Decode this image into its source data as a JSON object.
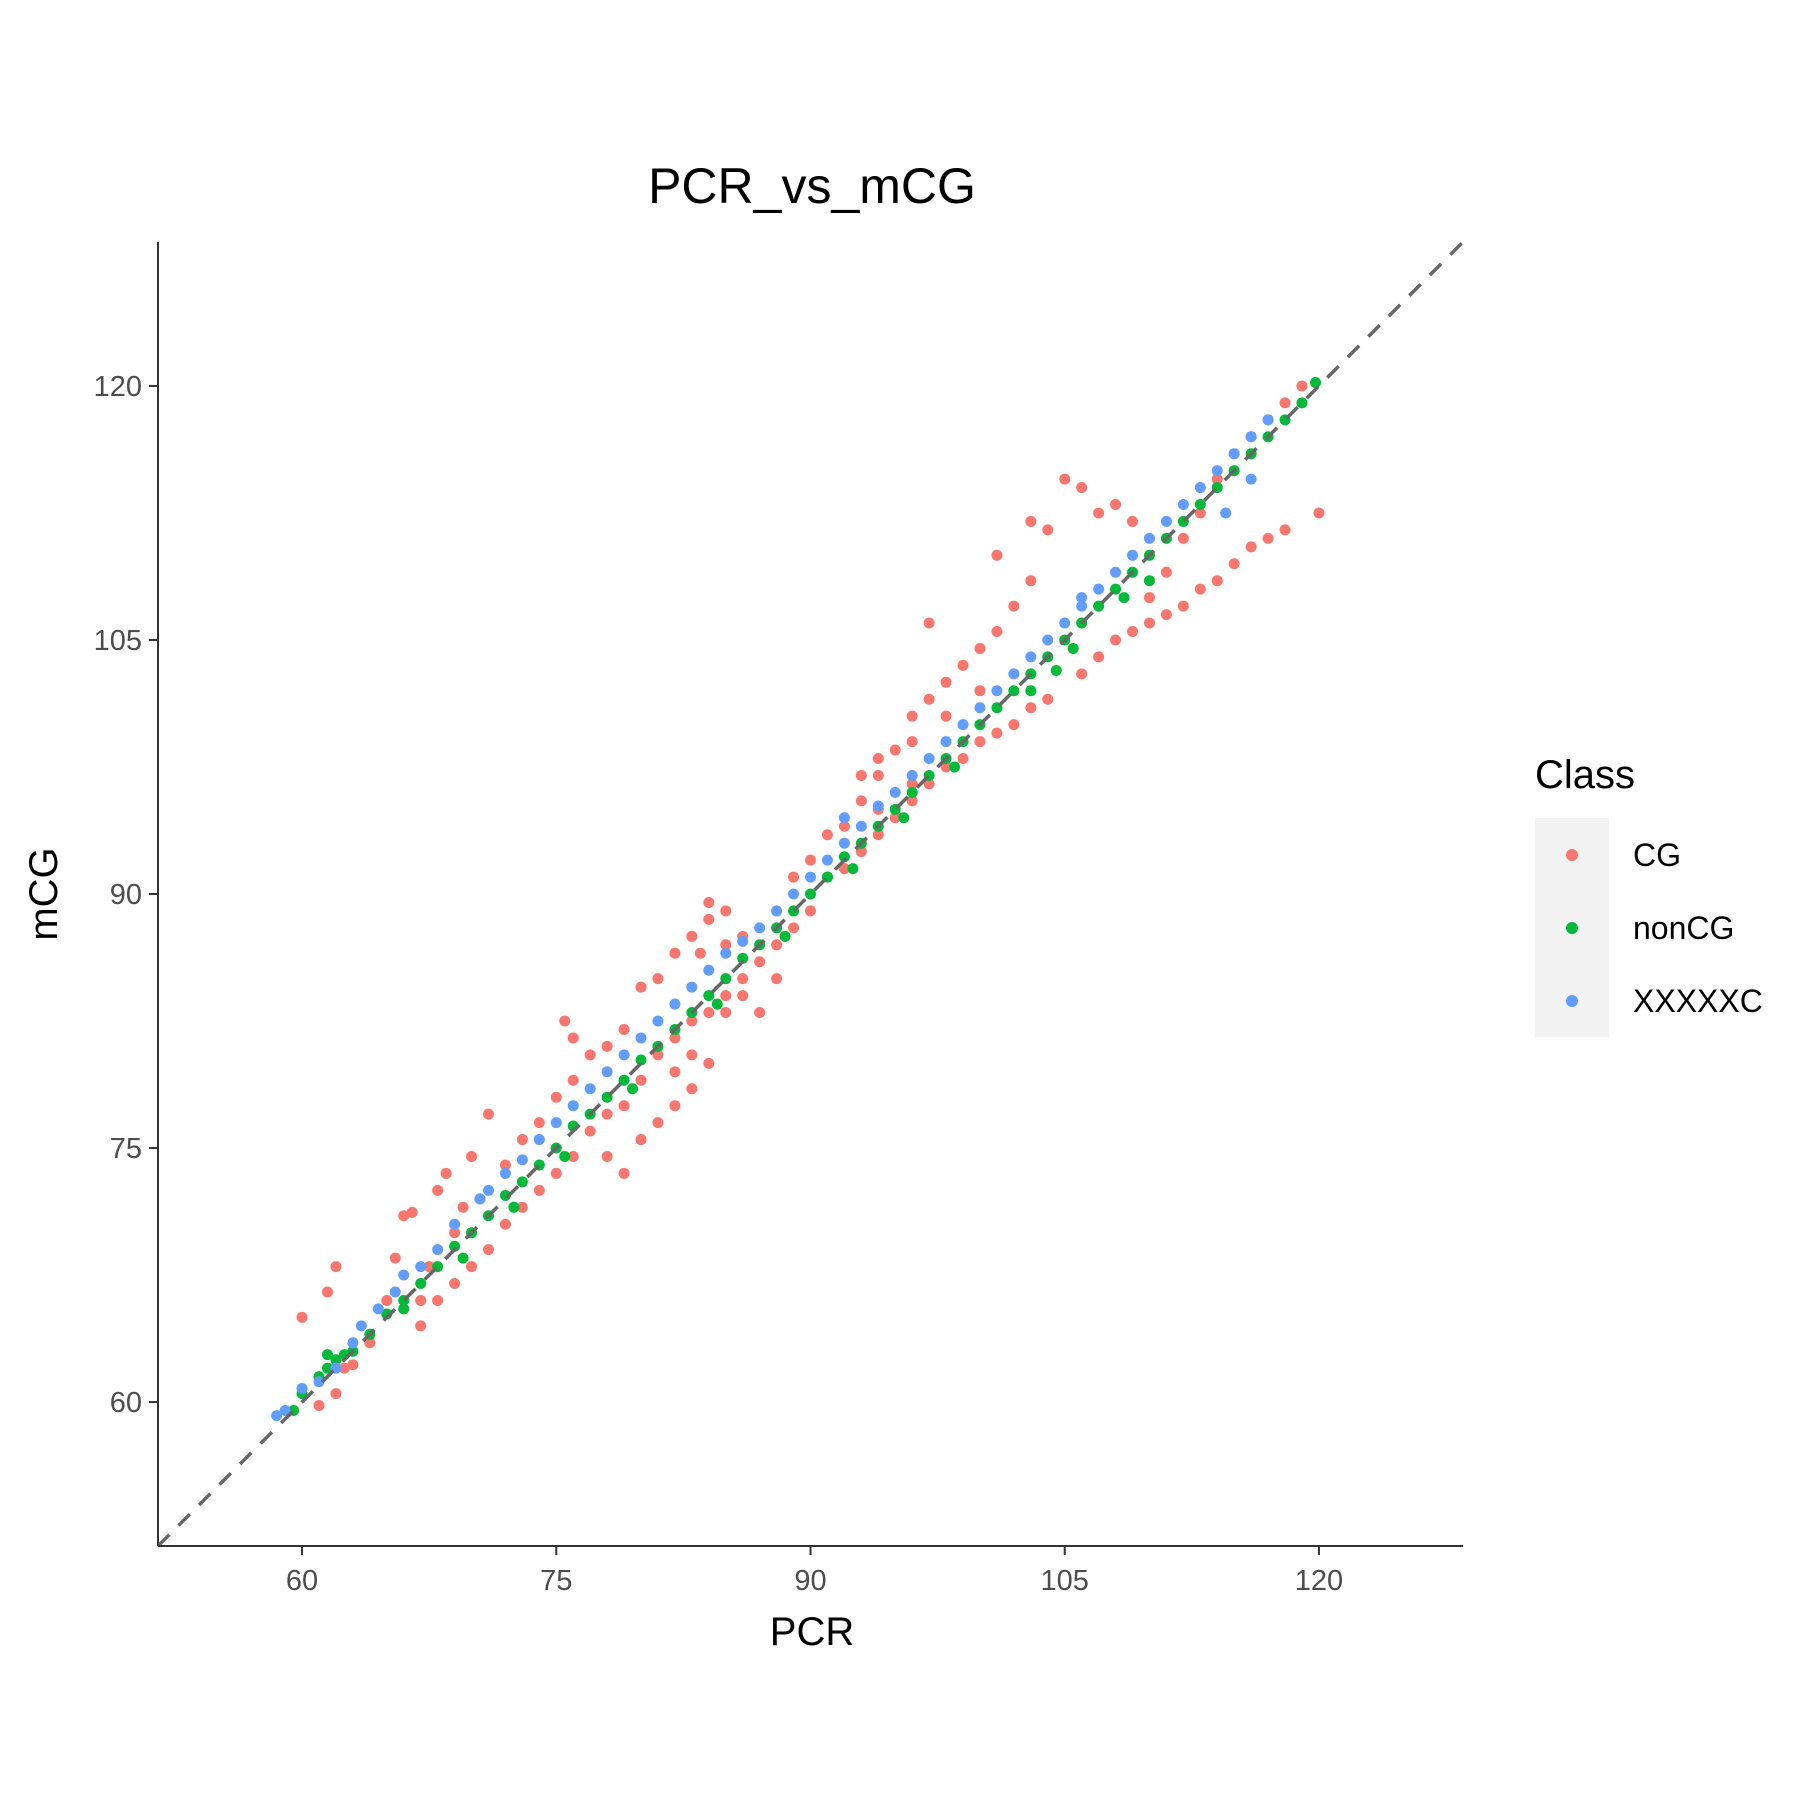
{
  "chart_data": {
    "type": "scatter",
    "title": "PCR_vs_mCG",
    "xlabel": "PCR",
    "ylabel": "mCG",
    "xlim": [
      51.5,
      128.5
    ],
    "ylim": [
      51.5,
      128.5
    ],
    "xticks": [
      60,
      75,
      90,
      105,
      120
    ],
    "yticks": [
      60,
      75,
      90,
      105,
      120
    ],
    "grid": false,
    "reference_line": {
      "type": "identity",
      "style": "dashed",
      "color": "#666666"
    },
    "legend": {
      "title": "Class",
      "position": "right"
    },
    "series": [
      {
        "name": "CG",
        "color": "#F8766D",
        "points": [
          [
            60,
            65
          ],
          [
            61.5,
            66.5
          ],
          [
            62,
            68
          ],
          [
            62.5,
            62
          ],
          [
            61,
            59.8
          ],
          [
            62,
            60.5
          ],
          [
            63,
            62.2
          ],
          [
            64,
            63.5
          ],
          [
            65,
            66
          ],
          [
            65.5,
            68.5
          ],
          [
            66,
            71
          ],
          [
            66.5,
            71.2
          ],
          [
            67,
            66
          ],
          [
            67.5,
            68
          ],
          [
            68,
            72.5
          ],
          [
            68.5,
            73.5
          ],
          [
            69,
            70
          ],
          [
            69.5,
            71.5
          ],
          [
            70,
            74.5
          ],
          [
            70.5,
            72
          ],
          [
            67,
            64.5
          ],
          [
            68,
            66
          ],
          [
            69,
            67
          ],
          [
            70,
            68
          ],
          [
            71,
            69
          ],
          [
            72,
            70.5
          ],
          [
            73,
            71.5
          ],
          [
            74,
            72.5
          ],
          [
            75,
            73.5
          ],
          [
            76,
            74.5
          ],
          [
            77,
            76
          ],
          [
            78,
            77
          ],
          [
            72,
            74
          ],
          [
            73,
            75.5
          ],
          [
            74,
            76.5
          ],
          [
            75,
            78
          ],
          [
            76,
            79
          ],
          [
            77,
            80.5
          ],
          [
            78,
            81
          ],
          [
            79,
            82
          ],
          [
            75.5,
            82.5
          ],
          [
            76,
            81.5
          ],
          [
            71,
            77
          ],
          [
            80,
            75.5
          ],
          [
            81,
            76.5
          ],
          [
            82,
            77.5
          ],
          [
            83,
            78.5
          ],
          [
            84,
            80
          ],
          [
            79,
            77.5
          ],
          [
            80,
            79
          ],
          [
            81,
            80.5
          ],
          [
            82,
            81.5
          ],
          [
            83,
            82.5
          ],
          [
            84,
            83
          ],
          [
            85,
            84
          ],
          [
            86,
            85
          ],
          [
            80,
            84.5
          ],
          [
            81,
            85
          ],
          [
            82,
            86.5
          ],
          [
            83,
            87.5
          ],
          [
            84,
            88.5
          ],
          [
            85,
            89
          ],
          [
            84,
            89.5
          ],
          [
            83.5,
            86.5
          ],
          [
            85,
            83
          ],
          [
            86,
            84
          ],
          [
            87,
            86
          ],
          [
            88,
            87
          ],
          [
            89,
            88
          ],
          [
            90,
            89
          ],
          [
            88,
            85
          ],
          [
            87,
            83
          ],
          [
            89,
            91
          ],
          [
            90,
            92
          ],
          [
            91,
            93.5
          ],
          [
            92,
            94
          ],
          [
            93,
            95.5
          ],
          [
            94,
            97
          ],
          [
            95,
            98.5
          ],
          [
            96,
            99
          ],
          [
            91,
            91
          ],
          [
            92,
            91.5
          ],
          [
            93,
            92.5
          ],
          [
            94,
            93.5
          ],
          [
            95,
            94.5
          ],
          [
            96,
            95.5
          ],
          [
            97,
            96.5
          ],
          [
            98,
            97.5
          ],
          [
            99,
            98
          ],
          [
            100,
            99
          ],
          [
            101,
            99.5
          ],
          [
            102,
            100
          ],
          [
            103,
            101
          ],
          [
            104,
            101.5
          ],
          [
            96,
            100.5
          ],
          [
            97,
            101.5
          ],
          [
            98,
            102.5
          ],
          [
            99,
            103.5
          ],
          [
            100,
            104.5
          ],
          [
            101,
            105.5
          ],
          [
            102,
            107
          ],
          [
            103,
            108.5
          ],
          [
            101,
            110
          ],
          [
            103,
            112
          ],
          [
            104,
            111.5
          ],
          [
            105,
            114.5
          ],
          [
            106,
            114
          ],
          [
            107,
            112.5
          ],
          [
            108,
            113
          ],
          [
            109,
            112
          ],
          [
            106,
            103
          ],
          [
            107,
            104
          ],
          [
            108,
            105
          ],
          [
            109,
            105.5
          ],
          [
            110,
            106
          ],
          [
            111,
            106.5
          ],
          [
            112,
            107
          ],
          [
            113,
            108
          ],
          [
            114,
            108.5
          ],
          [
            115,
            109.5
          ],
          [
            116,
            110.5
          ],
          [
            117,
            111
          ],
          [
            118,
            111.5
          ],
          [
            120,
            112.5
          ],
          [
            110,
            107.5
          ],
          [
            111,
            109
          ],
          [
            112,
            111
          ],
          [
            113,
            112.5
          ],
          [
            114,
            114.5
          ],
          [
            115,
            116
          ],
          [
            116,
            117
          ],
          [
            117,
            118
          ],
          [
            118,
            119
          ],
          [
            119,
            120
          ],
          [
            97,
            106
          ],
          [
            85,
            87
          ],
          [
            86,
            87.5
          ],
          [
            78,
            74.5
          ],
          [
            79,
            73.5
          ],
          [
            94,
            98
          ],
          [
            93,
            97
          ],
          [
            98,
            100.5
          ],
          [
            100,
            102
          ],
          [
            96,
            96.5
          ],
          [
            94,
            95
          ],
          [
            82,
            79.5
          ],
          [
            83,
            80.5
          ]
        ]
      },
      {
        "name": "nonCG",
        "color": "#00BA38",
        "points": [
          [
            59.5,
            59.5
          ],
          [
            60,
            60.5
          ],
          [
            61,
            61.5
          ],
          [
            61.5,
            62.8
          ],
          [
            62,
            62.5
          ],
          [
            63,
            63
          ],
          [
            64,
            64
          ],
          [
            65,
            65.2
          ],
          [
            66,
            66
          ],
          [
            67,
            67
          ],
          [
            68,
            68
          ],
          [
            69,
            69.2
          ],
          [
            70,
            70
          ],
          [
            71,
            71
          ],
          [
            72,
            72.2
          ],
          [
            73,
            73
          ],
          [
            74,
            74
          ],
          [
            75,
            75
          ],
          [
            76,
            76.3
          ],
          [
            77,
            77
          ],
          [
            78,
            78
          ],
          [
            79,
            79
          ],
          [
            80,
            80.2
          ],
          [
            81,
            81
          ],
          [
            82,
            82
          ],
          [
            83,
            83
          ],
          [
            84,
            84
          ],
          [
            85,
            85
          ],
          [
            86,
            86.2
          ],
          [
            87,
            87
          ],
          [
            88,
            88
          ],
          [
            89,
            89
          ],
          [
            90,
            90
          ],
          [
            91,
            91
          ],
          [
            92,
            92.2
          ],
          [
            93,
            93
          ],
          [
            94,
            94
          ],
          [
            95,
            95
          ],
          [
            96,
            96
          ],
          [
            97,
            97
          ],
          [
            98,
            98
          ],
          [
            99,
            99
          ],
          [
            100,
            100
          ],
          [
            101,
            101
          ],
          [
            102,
            102
          ],
          [
            103,
            103
          ],
          [
            104,
            104
          ],
          [
            105,
            105
          ],
          [
            106,
            106
          ],
          [
            107,
            107
          ],
          [
            108,
            108
          ],
          [
            109,
            109
          ],
          [
            110,
            110
          ],
          [
            111,
            111
          ],
          [
            112,
            112
          ],
          [
            113,
            113
          ],
          [
            114,
            114
          ],
          [
            115,
            115
          ],
          [
            116,
            116
          ],
          [
            117,
            117
          ],
          [
            118,
            118
          ],
          [
            119,
            119
          ],
          [
            119.8,
            120.2
          ],
          [
            66,
            65.5
          ],
          [
            69.5,
            68.5
          ],
          [
            75.5,
            74.5
          ],
          [
            84.5,
            83.5
          ],
          [
            95.5,
            94.5
          ],
          [
            104.5,
            103.2
          ],
          [
            110,
            108.5
          ],
          [
            103,
            102
          ],
          [
            98.5,
            97.5
          ],
          [
            88.5,
            87.5
          ],
          [
            79.5,
            78.5
          ],
          [
            61.5,
            62
          ],
          [
            62.5,
            62.8
          ],
          [
            72.5,
            71.5
          ],
          [
            92.5,
            91.5
          ],
          [
            105.5,
            104.5
          ],
          [
            108.5,
            107.5
          ]
        ]
      },
      {
        "name": "XXXXXC",
        "color": "#619CFF",
        "points": [
          [
            58.5,
            59.2
          ],
          [
            59,
            59.5
          ],
          [
            60,
            60.8
          ],
          [
            61,
            61.2
          ],
          [
            62,
            62
          ],
          [
            63,
            63.5
          ],
          [
            64.5,
            65.5
          ],
          [
            65.5,
            66.5
          ],
          [
            67,
            68
          ],
          [
            68,
            69
          ],
          [
            69,
            70.5
          ],
          [
            70.5,
            72
          ],
          [
            72,
            73.5
          ],
          [
            73,
            74.3
          ],
          [
            74,
            75.5
          ],
          [
            75,
            76.5
          ],
          [
            76,
            77.5
          ],
          [
            77,
            78.5
          ],
          [
            78,
            79.5
          ],
          [
            79,
            80.5
          ],
          [
            80,
            81.5
          ],
          [
            81,
            82.5
          ],
          [
            82,
            83.5
          ],
          [
            83,
            84.5
          ],
          [
            84,
            85.5
          ],
          [
            85,
            86.5
          ],
          [
            86,
            87.2
          ],
          [
            87,
            88
          ],
          [
            88,
            89
          ],
          [
            89,
            90
          ],
          [
            90,
            91
          ],
          [
            91,
            92
          ],
          [
            92,
            93
          ],
          [
            93,
            94
          ],
          [
            94,
            95.2
          ],
          [
            95,
            96
          ],
          [
            96,
            97
          ],
          [
            97,
            98
          ],
          [
            98,
            99
          ],
          [
            99,
            100
          ],
          [
            100,
            101
          ],
          [
            101,
            102
          ],
          [
            102,
            103
          ],
          [
            103,
            104
          ],
          [
            104,
            105
          ],
          [
            105,
            106
          ],
          [
            106,
            107
          ],
          [
            107,
            108
          ],
          [
            108,
            109
          ],
          [
            109,
            110
          ],
          [
            110,
            111
          ],
          [
            111,
            112
          ],
          [
            112,
            113
          ],
          [
            113,
            114
          ],
          [
            114,
            115
          ],
          [
            115,
            116
          ],
          [
            116,
            117
          ],
          [
            117,
            118
          ],
          [
            114.5,
            112.5
          ],
          [
            116,
            114.5
          ],
          [
            106,
            107.5
          ],
          [
            92,
            94.5
          ],
          [
            71,
            72.5
          ],
          [
            66,
            67.5
          ],
          [
            63.5,
            64.5
          ]
        ]
      }
    ]
  }
}
